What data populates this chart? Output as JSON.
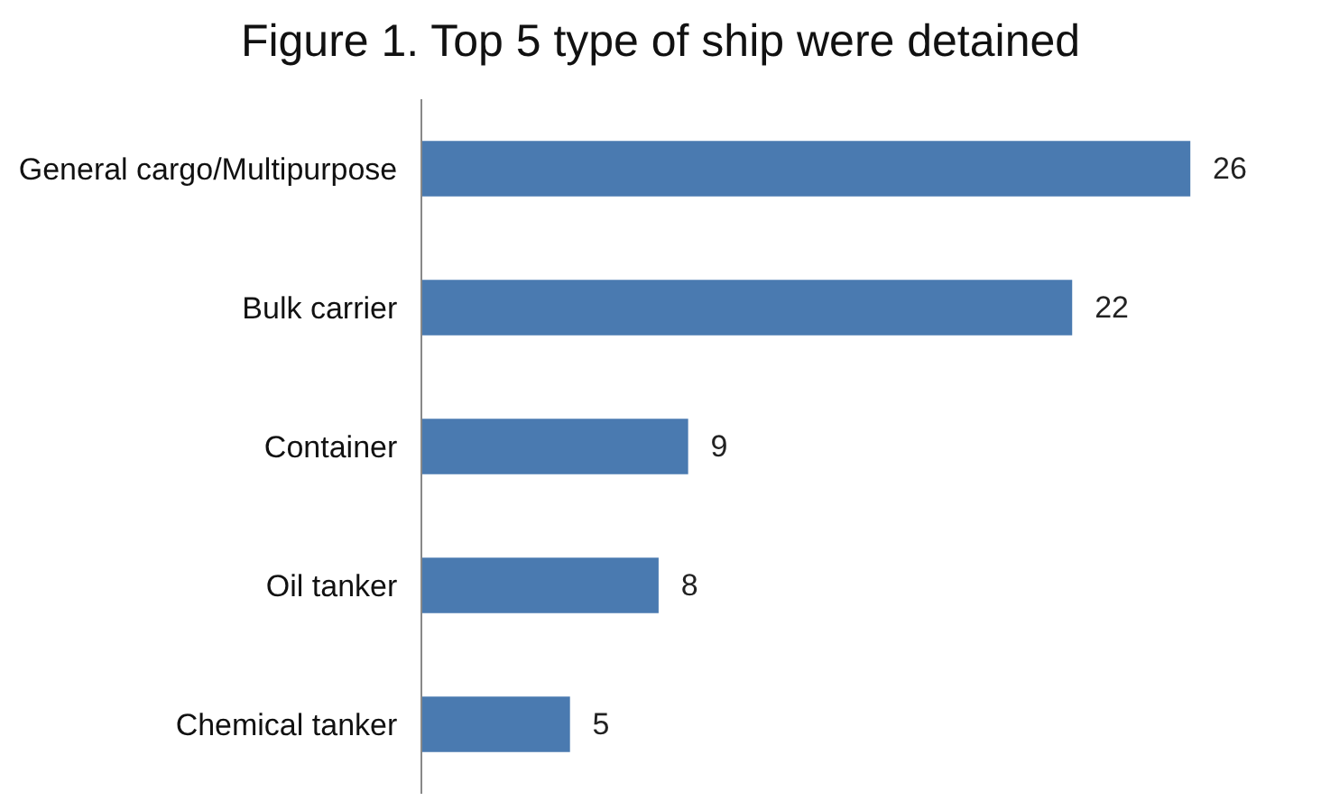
{
  "chart_data": {
    "type": "bar",
    "orientation": "horizontal",
    "title": "Figure 1. Top 5 type of ship were detained",
    "categories": [
      "General cargo/Multipurpose",
      "Bulk carrier",
      "Container",
      "Oil tanker",
      "Chemical tanker"
    ],
    "values": [
      26,
      22,
      9,
      8,
      5
    ],
    "color": "#4a7ab0",
    "data_labels": true,
    "tick_labels": "y",
    "legend": false
  }
}
